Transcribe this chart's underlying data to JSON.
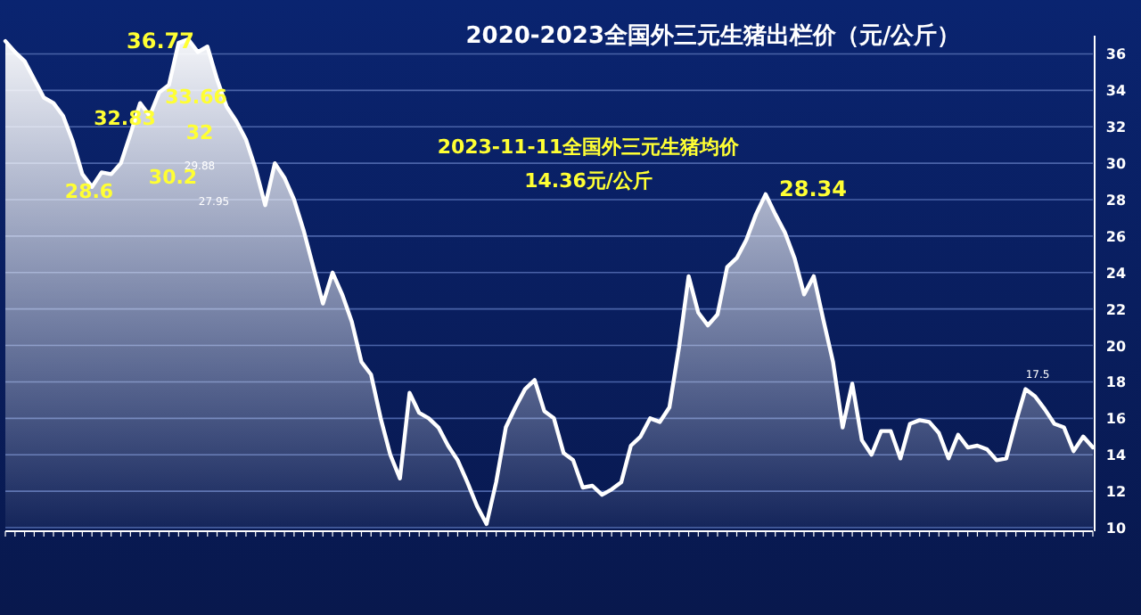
{
  "chart_data": {
    "type": "area",
    "title": "2020-2023全国外三元生猪出栏价（元/公斤）",
    "annotations": [
      "36.77",
      "33.66",
      "32.83",
      "32",
      "30.2",
      "28.6",
      "29.88",
      "27.95",
      "28.34",
      "17.5",
      "2023-11-11全国外三元生猪均价",
      "14.36元/公斤"
    ],
    "categories": [
      null,
      null,
      null,
      null,
      null,
      null,
      null,
      null,
      null,
      null,
      null,
      null,
      null,
      null,
      null,
      null,
      null,
      null,
      null,
      null,
      null,
      null,
      null,
      null,
      null,
      null,
      null,
      null,
      null,
      null,
      null,
      null,
      null,
      null,
      null,
      null,
      null,
      null,
      null,
      null,
      null,
      null,
      null,
      null,
      null,
      null,
      null,
      null,
      null,
      null,
      null,
      null,
      null,
      null,
      null,
      null,
      null,
      null,
      null,
      null,
      null,
      null,
      null,
      null,
      null,
      null,
      null,
      null,
      null,
      null,
      null,
      null,
      null,
      null,
      null,
      null,
      null,
      null,
      null,
      null,
      null,
      null,
      null,
      null,
      null,
      null,
      null,
      null,
      null,
      null,
      null,
      null,
      null,
      null,
      null,
      null,
      null,
      null,
      null,
      null,
      null,
      null,
      null,
      null,
      null,
      null,
      null,
      null,
      null,
      null,
      null,
      null,
      null,
      null
    ],
    "values": [
      36.7,
      36.1,
      35.6,
      34.6,
      33.6,
      33.3,
      32.6,
      31.2,
      29.4,
      28.7,
      29.5,
      29.4,
      30,
      31.6,
      33.3,
      32.6,
      33.9,
      34.3,
      36.6,
      36.8,
      36.1,
      36.4,
      34.6,
      33.1,
      32.3,
      31.3,
      29.7,
      27.7,
      30,
      29.2,
      28,
      26.3,
      24.3,
      22.3,
      24,
      22.8,
      21.3,
      19.1,
      18.4,
      16,
      14,
      12.7,
      17.4,
      16.3,
      16,
      15.5,
      14.5,
      13.7,
      12.5,
      11.2,
      10.2,
      12.5,
      15.5,
      16.6,
      17.6,
      18.1,
      16.4,
      16,
      14.1,
      13.7,
      12.2,
      12.3,
      11.8,
      12.1,
      12.5,
      14.5,
      15,
      16,
      15.8,
      16.6,
      19.9,
      23.8,
      21.8,
      21.1,
      21.7,
      24.3,
      24.8,
      25.8,
      27.2,
      28.3,
      27.2,
      26.2,
      24.8,
      22.8,
      23.8,
      21.4,
      19.1,
      15.5,
      17.9,
      14.8,
      14,
      15.3,
      15.3,
      13.8,
      15.7,
      15.9,
      15.8,
      15.2,
      13.8,
      15.1,
      14.4,
      14.5,
      14.3,
      13.7,
      13.8,
      15.8,
      17.6,
      17.2,
      16.5,
      15.7,
      15.5,
      14.2,
      15,
      14.4
    ],
    "color": "#ffffff",
    "ylim": [
      10,
      37
    ],
    "yticks": [
      10,
      12,
      14,
      16,
      18,
      20,
      22,
      24,
      26,
      28,
      30,
      32,
      34,
      36
    ],
    "grid": "y",
    "tick_labels": "y"
  }
}
